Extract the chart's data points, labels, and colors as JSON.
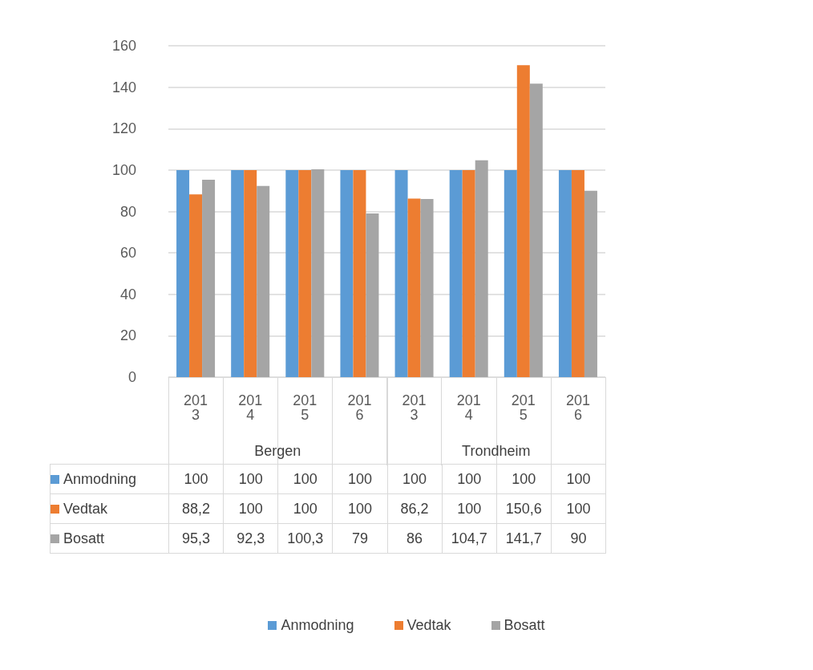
{
  "chart_data": {
    "type": "bar",
    "categories": [
      "2013",
      "2014",
      "2015",
      "2016",
      "2013",
      "2014",
      "2015",
      "2016"
    ],
    "annotations": [
      "Bergen",
      "Trondheim"
    ],
    "series": [
      {
        "name": "Anmodning",
        "color": "#5b9bd5",
        "values": [
          100,
          100,
          100,
          100,
          100,
          100,
          100,
          100
        ],
        "value_labels": [
          "100",
          "100",
          "100",
          "100",
          "100",
          "100",
          "100",
          "100"
        ]
      },
      {
        "name": "Vedtak",
        "color": "#ed7d31",
        "values": [
          88.2,
          100,
          100,
          100,
          86.2,
          100,
          150.6,
          100
        ],
        "value_labels": [
          "88,2",
          "100",
          "100",
          "100",
          "86,2",
          "100",
          "150,6",
          "100"
        ]
      },
      {
        "name": "Bosatt",
        "color": "#a5a5a5",
        "values": [
          95.3,
          92.3,
          100.3,
          79,
          86,
          104.7,
          141.7,
          90
        ],
        "value_labels": [
          "95,3",
          "92,3",
          "100,3",
          "79",
          "86",
          "104,7",
          "141,7",
          "90"
        ]
      }
    ],
    "ylim": [
      0,
      160
    ],
    "yticks": [
      0,
      20,
      40,
      60,
      80,
      100,
      120,
      140,
      160
    ],
    "grid": "y",
    "legend": "bottom"
  }
}
